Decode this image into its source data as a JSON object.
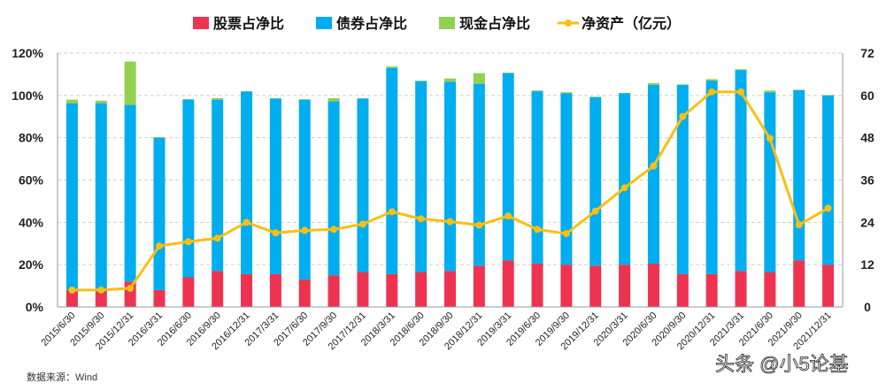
{
  "chart_data": {
    "type": "bar+line",
    "stacked": true,
    "categories": [
      "2015/6/30",
      "2015/9/30",
      "2015/12/31",
      "2016/3/31",
      "2016/6/30",
      "2016/9/30",
      "2016/12/31",
      "2017/3/31",
      "2017/6/30",
      "2017/9/30",
      "2017/12/31",
      "2018/3/31",
      "2018/6/30",
      "2018/9/30",
      "2018/12/31",
      "2019/3/31",
      "2019/6/30",
      "2019/9/30",
      "2019/12/31",
      "2020/3/31",
      "2020/6/30",
      "2020/9/30",
      "2020/12/31",
      "2021/3/31",
      "2021/6/30",
      "2021/9/30",
      "2021/12/31"
    ],
    "series": [
      {
        "name": "股票占净比",
        "type": "bar",
        "axis": "left",
        "color": "#ee3350",
        "values": [
          8,
          8,
          12,
          8,
          14,
          17,
          15.5,
          15.5,
          13,
          15,
          16.5,
          15.5,
          16.5,
          17,
          19.5,
          22,
          20.5,
          20,
          19.5,
          20,
          20.5,
          15.5,
          15.5,
          17,
          16.5,
          22,
          20
        ]
      },
      {
        "name": "债券占净比",
        "type": "bar",
        "axis": "left",
        "color": "#00adef",
        "values": [
          88.3,
          88.3,
          83.5,
          72,
          84,
          81,
          86.3,
          83,
          85,
          82.2,
          82,
          97.5,
          90.2,
          89.5,
          86,
          88.5,
          81.5,
          81,
          79.7,
          81,
          84.5,
          89.5,
          91.5,
          95,
          85,
          80.5,
          80
        ]
      },
      {
        "name": "现金占净比",
        "type": "bar",
        "axis": "left",
        "color": "#92d050",
        "values": [
          1.7,
          1.2,
          20.5,
          0.3,
          0.3,
          0.7,
          0.2,
          0.2,
          0.2,
          1.5,
          0.2,
          0.7,
          0.3,
          1.5,
          5,
          0.3,
          0.3,
          0.5,
          0.2,
          0.2,
          0.8,
          0.2,
          0.7,
          0.4,
          0.8,
          0.2,
          0.2
        ]
      },
      {
        "name": "净资产（亿元）",
        "type": "line",
        "axis": "right",
        "color": "#fbbf13",
        "values": [
          4.8,
          4.8,
          5.3,
          17.3,
          18.5,
          19.5,
          24,
          21,
          21.7,
          22,
          23.5,
          27,
          25,
          24.2,
          23.2,
          25.8,
          22,
          20.8,
          27.2,
          33.8,
          40,
          54,
          61,
          61,
          47.8,
          23.3,
          28
        ]
      }
    ],
    "y_left": {
      "range": [
        0,
        120
      ],
      "ticks": [
        "0%",
        "20%",
        "40%",
        "60%",
        "80%",
        "100%",
        "120%"
      ]
    },
    "y_right": {
      "range": [
        0,
        72
      ],
      "ticks": [
        "0",
        "12",
        "24",
        "36",
        "48",
        "60",
        "72"
      ]
    },
    "grid": "horizontal dashed",
    "legend": "top"
  },
  "source": "数据来源：Wind",
  "watermark": "头条 @小5论基"
}
